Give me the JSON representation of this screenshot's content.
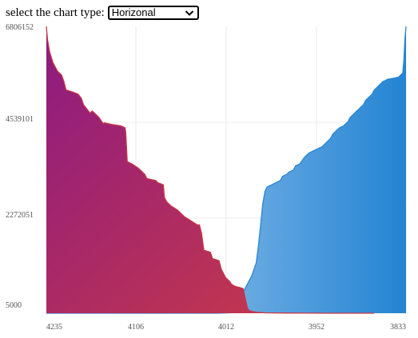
{
  "toolbar": {
    "label": "select the chart type:",
    "select_value": "Horizonal"
  },
  "chart_data": {
    "type": "area",
    "y_ticks": [
      "6806152",
      "4539101",
      "2272051",
      "5000"
    ],
    "x_ticks": [
      "4235",
      "4106",
      "4012",
      "3952",
      "3833"
    ],
    "ylim": [
      5000,
      6806152
    ],
    "grid": true,
    "series": [
      {
        "color": "#c8384a",
        "values": [
          [
            0,
            6806152
          ],
          [
            0.5,
            6500000
          ],
          [
            1.5,
            6200000
          ],
          [
            3,
            5950000
          ],
          [
            5,
            5750000
          ],
          [
            7,
            5650000
          ],
          [
            8,
            5500000
          ],
          [
            9,
            5300000
          ],
          [
            12,
            5250000
          ],
          [
            14.5,
            5200000
          ],
          [
            16,
            5100000
          ],
          [
            17,
            4950000
          ],
          [
            20,
            4750000
          ],
          [
            21,
            4800000
          ],
          [
            24,
            4650000
          ],
          [
            26,
            4500000
          ],
          [
            26.5,
            4520000
          ],
          [
            30,
            4480000
          ],
          [
            34,
            4450000
          ],
          [
            36,
            4400000
          ],
          [
            36.3,
            4300000
          ],
          [
            37,
            3600000
          ],
          [
            39,
            3550000
          ],
          [
            42,
            3450000
          ],
          [
            43,
            3400000
          ],
          [
            45,
            3300000
          ],
          [
            46,
            3200000
          ],
          [
            50,
            3150000
          ],
          [
            51,
            3100000
          ],
          [
            53.5,
            3050000
          ],
          [
            54,
            2750000
          ],
          [
            55,
            2650000
          ],
          [
            57,
            2550000
          ],
          [
            60,
            2450000
          ],
          [
            61,
            2400000
          ],
          [
            63,
            2300000
          ],
          [
            66,
            2200000
          ],
          [
            69,
            2100000
          ],
          [
            70,
            2100000
          ],
          [
            71,
            1900000
          ],
          [
            72,
            1500000
          ],
          [
            75,
            1450000
          ],
          [
            76,
            1300000
          ],
          [
            79,
            1250000
          ],
          [
            80,
            1050000
          ],
          [
            82,
            850000
          ],
          [
            84,
            750000
          ],
          [
            84.5,
            700000
          ],
          [
            86,
            650000
          ],
          [
            88,
            620000
          ],
          [
            90,
            590000
          ],
          [
            91,
            350000
          ],
          [
            92,
            120000
          ],
          [
            93,
            60000
          ],
          [
            96,
            30000
          ],
          [
            100,
            15000
          ],
          [
            110,
            8000
          ],
          [
            130,
            5000
          ],
          [
            150,
            5000
          ]
        ]
      },
      {
        "color": "#2b87d4",
        "values": [
          [
            0,
            5000
          ],
          [
            45,
            5000
          ],
          [
            55,
            5000
          ],
          [
            65,
            5000
          ],
          [
            70,
            5000
          ],
          [
            78,
            5000
          ],
          [
            84,
            15000
          ],
          [
            86,
            40000
          ],
          [
            88,
            250000
          ],
          [
            89,
            350000
          ],
          [
            90,
            500000
          ],
          [
            91,
            600000
          ],
          [
            92,
            700000
          ],
          [
            94,
            900000
          ],
          [
            96,
            1200000
          ],
          [
            97,
            1600000
          ],
          [
            98,
            2100000
          ],
          [
            99,
            2600000
          ],
          [
            100,
            2900000
          ],
          [
            101,
            3000000
          ],
          [
            103,
            3050000
          ],
          [
            105,
            3100000
          ],
          [
            107,
            3150000
          ],
          [
            108,
            3250000
          ],
          [
            110,
            3300000
          ],
          [
            111,
            3350000
          ],
          [
            113,
            3400000
          ],
          [
            114,
            3500000
          ],
          [
            116,
            3550000
          ],
          [
            118,
            3700000
          ],
          [
            120,
            3800000
          ],
          [
            122,
            3850000
          ],
          [
            124,
            3900000
          ],
          [
            126,
            3950000
          ],
          [
            128,
            4050000
          ],
          [
            130,
            4150000
          ],
          [
            131,
            4250000
          ],
          [
            133,
            4350000
          ],
          [
            134,
            4400000
          ],
          [
            136,
            4450000
          ],
          [
            138,
            4550000
          ],
          [
            139,
            4650000
          ],
          [
            140,
            4700000
          ],
          [
            141,
            4750000
          ],
          [
            142,
            4800000
          ],
          [
            143,
            4850000
          ],
          [
            144,
            4900000
          ],
          [
            145,
            4950000
          ],
          [
            146,
            5050000
          ],
          [
            147,
            5100000
          ],
          [
            148,
            5150000
          ],
          [
            149,
            5200000
          ],
          [
            150,
            5300000
          ],
          [
            151,
            5350000
          ],
          [
            152,
            5400000
          ],
          [
            153,
            5450000
          ],
          [
            154,
            5500000
          ],
          [
            155,
            5520000
          ],
          [
            156,
            5550000
          ],
          [
            157,
            5560000
          ],
          [
            158,
            5570000
          ],
          [
            159,
            5580000
          ],
          [
            160,
            5590000
          ],
          [
            161,
            5600000
          ],
          [
            162,
            5650000
          ],
          [
            163,
            5700000
          ],
          [
            163.5,
            6000000
          ],
          [
            164,
            6500000
          ],
          [
            164.5,
            6806152
          ]
        ]
      }
    ]
  }
}
